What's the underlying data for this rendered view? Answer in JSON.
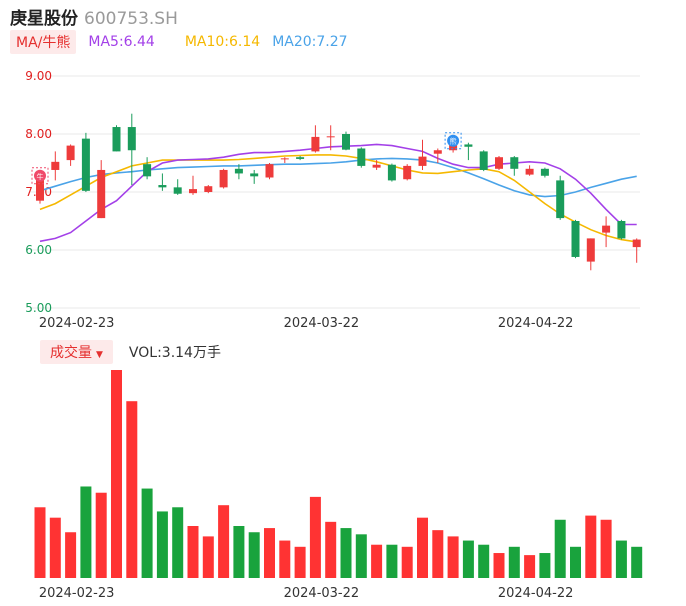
{
  "header": {
    "stock_name": "庚星股份",
    "stock_code": "600753.SH"
  },
  "ma_legend": {
    "badge": "MA/牛熊",
    "ma5": "MA5:6.44",
    "ma10": "MA10:6.14",
    "ma20": "MA20:7.27",
    "colors": {
      "ma5": "#a340e8",
      "ma10": "#f5b800",
      "ma20": "#4aa3e8"
    }
  },
  "volume_legend": {
    "badge": "成交量",
    "value": "VOL:3.14万手"
  },
  "colors": {
    "up": "#ee3b3b",
    "down": "#1a9c5b",
    "vol_up": "#ff3333",
    "vol_down": "#19a33d",
    "grid": "#e8e8e8",
    "axis_text": "#e02020",
    "axis_text_green": "#1a9c5b"
  },
  "chart_data": [
    {
      "type": "candlestick",
      "yticks": [
        "9.00",
        "8.00",
        "7.00",
        "6.00",
        "5.00"
      ],
      "ylim": [
        5.0,
        9.0
      ],
      "xtick_labels": [
        "2024-02-23",
        "2024-03-22",
        "2024-04-22"
      ],
      "xtick_indices": [
        2,
        18,
        32
      ],
      "markers": [
        {
          "index": 0,
          "label": "牛",
          "kind": "bull"
        },
        {
          "index": 27,
          "label": "熊",
          "kind": "bear"
        }
      ],
      "candles": [
        {
          "o": 6.85,
          "c": 7.28,
          "h": 7.3,
          "l": 6.8
        },
        {
          "o": 7.38,
          "c": 7.52,
          "h": 7.7,
          "l": 7.2
        },
        {
          "o": 7.55,
          "c": 7.8,
          "h": 7.82,
          "l": 7.45
        },
        {
          "o": 7.92,
          "c": 7.02,
          "h": 8.02,
          "l": 7.0
        },
        {
          "o": 6.55,
          "c": 7.38,
          "h": 7.55,
          "l": 6.55
        },
        {
          "o": 8.12,
          "c": 7.7,
          "h": 8.15,
          "l": 7.7
        },
        {
          "o": 8.12,
          "c": 7.72,
          "h": 8.35,
          "l": 7.12
        },
        {
          "o": 7.48,
          "c": 7.27,
          "h": 7.6,
          "l": 7.22
        },
        {
          "o": 7.12,
          "c": 7.08,
          "h": 7.32,
          "l": 7.02
        },
        {
          "o": 7.08,
          "c": 6.97,
          "h": 7.22,
          "l": 6.95
        },
        {
          "o": 6.98,
          "c": 7.05,
          "h": 7.28,
          "l": 6.95
        },
        {
          "o": 7.0,
          "c": 7.1,
          "h": 7.12,
          "l": 6.98
        },
        {
          "o": 7.08,
          "c": 7.38,
          "h": 7.4,
          "l": 7.06
        },
        {
          "o": 7.4,
          "c": 7.32,
          "h": 7.48,
          "l": 7.22
        },
        {
          "o": 7.32,
          "c": 7.27,
          "h": 7.38,
          "l": 7.14
        },
        {
          "o": 7.25,
          "c": 7.48,
          "h": 7.5,
          "l": 7.22
        },
        {
          "o": 7.57,
          "c": 7.58,
          "h": 7.6,
          "l": 7.5
        },
        {
          "o": 7.6,
          "c": 7.57,
          "h": 7.62,
          "l": 7.55
        },
        {
          "o": 7.7,
          "c": 7.95,
          "h": 8.15,
          "l": 7.68
        },
        {
          "o": 7.95,
          "c": 7.96,
          "h": 8.15,
          "l": 7.72
        },
        {
          "o": 8.0,
          "c": 7.73,
          "h": 8.04,
          "l": 7.72
        },
        {
          "o": 7.75,
          "c": 7.45,
          "h": 7.77,
          "l": 7.42
        },
        {
          "o": 7.42,
          "c": 7.47,
          "h": 7.55,
          "l": 7.38
        },
        {
          "o": 7.47,
          "c": 7.2,
          "h": 7.49,
          "l": 7.18
        },
        {
          "o": 7.22,
          "c": 7.45,
          "h": 7.48,
          "l": 7.2
        },
        {
          "o": 7.45,
          "c": 7.61,
          "h": 7.9,
          "l": 7.38
        },
        {
          "o": 7.66,
          "c": 7.72,
          "h": 7.75,
          "l": 7.5
        },
        {
          "o": 7.72,
          "c": 7.82,
          "h": 7.85,
          "l": 7.68
        },
        {
          "o": 7.82,
          "c": 7.78,
          "h": 7.85,
          "l": 7.55
        },
        {
          "o": 7.7,
          "c": 7.38,
          "h": 7.72,
          "l": 7.36
        },
        {
          "o": 7.4,
          "c": 7.6,
          "h": 7.62,
          "l": 7.38
        },
        {
          "o": 7.6,
          "c": 7.4,
          "h": 7.62,
          "l": 7.28
        },
        {
          "o": 7.3,
          "c": 7.4,
          "h": 7.46,
          "l": 7.28
        },
        {
          "o": 7.4,
          "c": 7.28,
          "h": 7.42,
          "l": 7.25
        },
        {
          "o": 7.2,
          "c": 6.55,
          "h": 7.28,
          "l": 6.52
        },
        {
          "o": 6.5,
          "c": 5.88,
          "h": 6.52,
          "l": 5.86
        },
        {
          "o": 5.8,
          "c": 6.2,
          "h": 6.2,
          "l": 5.65
        },
        {
          "o": 6.3,
          "c": 6.42,
          "h": 6.58,
          "l": 6.05
        },
        {
          "o": 6.5,
          "c": 6.2,
          "h": 6.52,
          "l": 6.18
        },
        {
          "o": 6.05,
          "c": 6.18,
          "h": 6.2,
          "l": 5.78
        }
      ],
      "ma5": [
        6.15,
        6.2,
        6.3,
        6.5,
        6.7,
        6.85,
        7.1,
        7.35,
        7.5,
        7.55,
        7.56,
        7.57,
        7.6,
        7.65,
        7.68,
        7.68,
        7.7,
        7.72,
        7.75,
        7.78,
        7.79,
        7.8,
        7.82,
        7.8,
        7.75,
        7.7,
        7.58,
        7.48,
        7.42,
        7.42,
        7.48,
        7.5,
        7.52,
        7.5,
        7.4,
        7.22,
        6.98,
        6.7,
        6.44,
        6.44
      ],
      "ma10": [
        6.7,
        6.8,
        6.95,
        7.1,
        7.25,
        7.35,
        7.45,
        7.5,
        7.55,
        7.55,
        7.55,
        7.55,
        7.55,
        7.56,
        7.58,
        7.6,
        7.62,
        7.63,
        7.64,
        7.64,
        7.62,
        7.58,
        7.52,
        7.45,
        7.38,
        7.33,
        7.32,
        7.35,
        7.38,
        7.4,
        7.35,
        7.2,
        7.0,
        6.8,
        6.62,
        6.48,
        6.35,
        6.25,
        6.18,
        6.14
      ],
      "ma20": [
        7.02,
        7.1,
        7.18,
        7.25,
        7.3,
        7.33,
        7.35,
        7.38,
        7.4,
        7.42,
        7.43,
        7.44,
        7.45,
        7.45,
        7.46,
        7.47,
        7.48,
        7.48,
        7.49,
        7.5,
        7.52,
        7.55,
        7.57,
        7.58,
        7.57,
        7.55,
        7.5,
        7.42,
        7.33,
        7.23,
        7.12,
        7.02,
        6.95,
        6.92,
        6.94,
        7.0,
        7.08,
        7.15,
        7.22,
        7.27
      ],
      "ma_slots": [
        0,
        1,
        2,
        3,
        4,
        5,
        6,
        7,
        8,
        9,
        10,
        11,
        12,
        13,
        14,
        15,
        16,
        17,
        18,
        19,
        20,
        21,
        22,
        23,
        24,
        25,
        26,
        27,
        28,
        29,
        30,
        31,
        32,
        33,
        34,
        35,
        36,
        37,
        38,
        39
      ]
    },
    {
      "type": "bar",
      "title": "成交量",
      "ylim": [
        0,
        100
      ],
      "volumes": [
        {
          "v": 34,
          "up": true
        },
        {
          "v": 29,
          "up": true
        },
        {
          "v": 22,
          "up": true
        },
        {
          "v": 44,
          "up": false
        },
        {
          "v": 41,
          "up": true
        },
        {
          "v": 100,
          "up": true
        },
        {
          "v": 85,
          "up": true
        },
        {
          "v": 43,
          "up": false
        },
        {
          "v": 32,
          "up": false
        },
        {
          "v": 34,
          "up": false
        },
        {
          "v": 25,
          "up": true
        },
        {
          "v": 20,
          "up": true
        },
        {
          "v": 35,
          "up": true
        },
        {
          "v": 25,
          "up": false
        },
        {
          "v": 22,
          "up": false
        },
        {
          "v": 24,
          "up": true
        },
        {
          "v": 18,
          "up": true
        },
        {
          "v": 15,
          "up": true
        },
        {
          "v": 39,
          "up": true
        },
        {
          "v": 27,
          "up": true
        },
        {
          "v": 24,
          "up": false
        },
        {
          "v": 21,
          "up": false
        },
        {
          "v": 16,
          "up": true
        },
        {
          "v": 16,
          "up": false
        },
        {
          "v": 15,
          "up": true
        },
        {
          "v": 29,
          "up": true
        },
        {
          "v": 23,
          "up": true
        },
        {
          "v": 20,
          "up": true
        },
        {
          "v": 18,
          "up": false
        },
        {
          "v": 16,
          "up": false
        },
        {
          "v": 12,
          "up": true
        },
        {
          "v": 15,
          "up": false
        },
        {
          "v": 11,
          "up": true
        },
        {
          "v": 12,
          "up": false
        },
        {
          "v": 28,
          "up": false
        },
        {
          "v": 15,
          "up": false
        },
        {
          "v": 30,
          "up": true
        },
        {
          "v": 28,
          "up": true
        },
        {
          "v": 18,
          "up": false
        },
        {
          "v": 15,
          "up": false
        }
      ]
    }
  ]
}
